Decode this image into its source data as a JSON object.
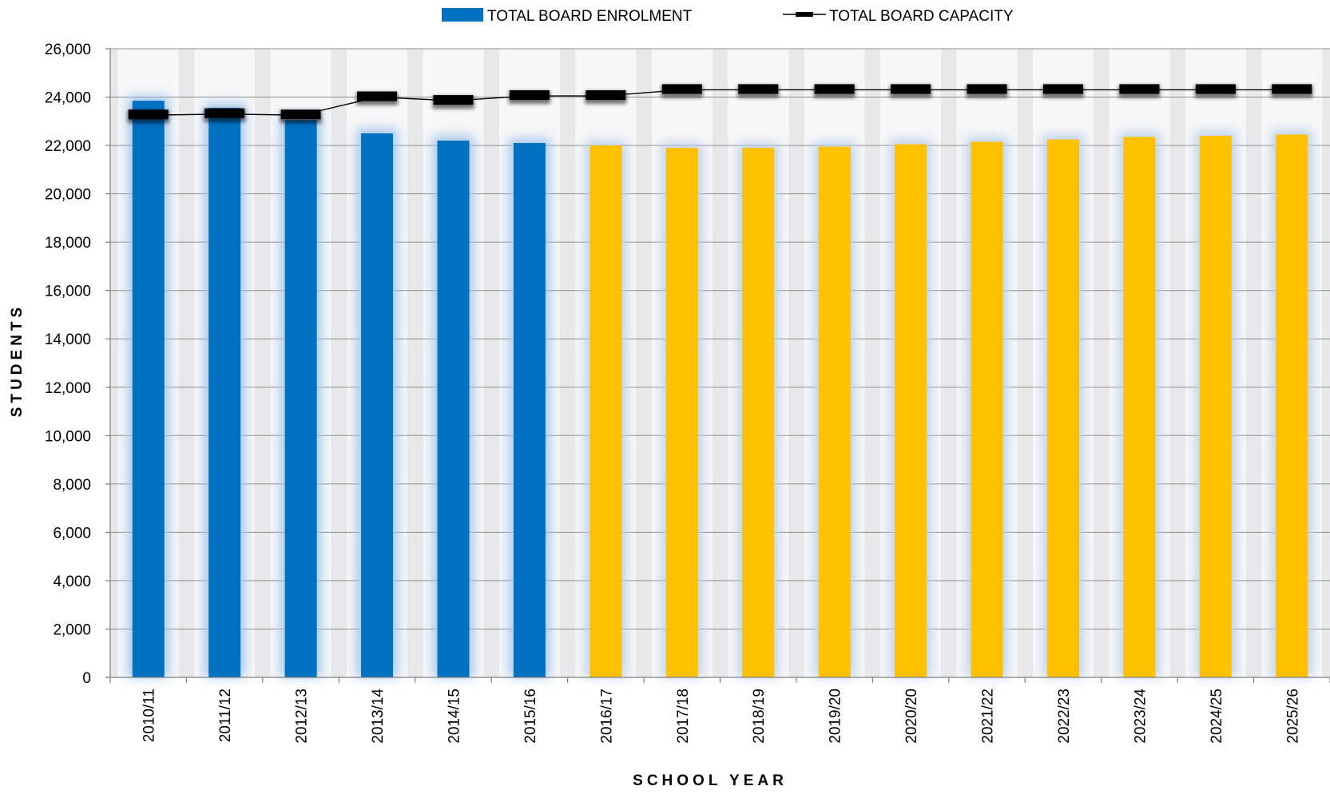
{
  "chart_data": {
    "type": "bar",
    "title": "",
    "xlabel": "SCHOOL YEAR",
    "ylabel": "STUDENTS",
    "ylim": [
      0,
      26000
    ],
    "ytick_step": 2000,
    "grid": true,
    "legend_placement": "top-center",
    "categories": [
      "2010/11",
      "2011/12",
      "2012/13",
      "2013/14",
      "2014/15",
      "2015/16",
      "2016/17",
      "2017/18",
      "2018/19",
      "2019/20",
      "2020/20",
      "2021/22",
      "2022/23",
      "2023/24",
      "2024/25",
      "2025/26"
    ],
    "series": [
      {
        "name": "TOTAL BOARD ENROLMENT",
        "kind": "bar",
        "values": [
          23850,
          23550,
          23050,
          22500,
          22200,
          22100,
          22000,
          21900,
          21900,
          21950,
          22050,
          22150,
          22250,
          22350,
          22400,
          22450
        ],
        "actual_color": "#0070C0",
        "projected_color": "#FFC000",
        "projected_from_index": 6
      },
      {
        "name": "TOTAL BOARD CAPACITY",
        "kind": "line",
        "values": [
          23250,
          23300,
          23250,
          24000,
          23850,
          24050,
          24050,
          24300,
          24300,
          24300,
          24300,
          24300,
          24300,
          24300,
          24300,
          24300
        ],
        "color": "#000000"
      }
    ]
  }
}
